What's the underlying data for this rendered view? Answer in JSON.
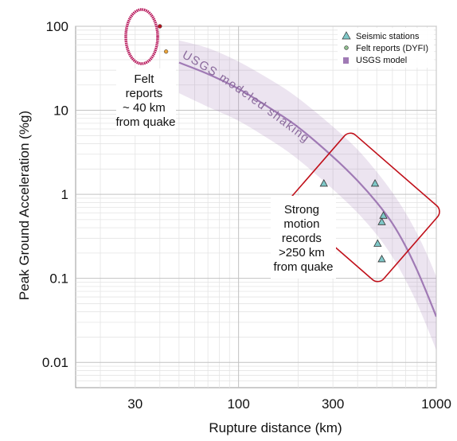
{
  "chart_data": {
    "type": "scatter",
    "title": "",
    "xlabel": "Rupture distance (km)",
    "ylabel": "Peak Ground Acceleration (%g)",
    "xscale": "log",
    "yscale": "log",
    "xlim": [
      15,
      1000
    ],
    "ylim": [
      0.005,
      100
    ],
    "x_ticks": [
      30,
      100,
      300,
      1000
    ],
    "x_tick_labels": [
      "30",
      "100",
      "300",
      "1000"
    ],
    "y_ticks": [
      0.01,
      0.1,
      1,
      10,
      100
    ],
    "y_tick_labels": [
      "0.01",
      "0.1",
      "1",
      "10",
      "100"
    ],
    "grid": true,
    "legend": {
      "position": "top-right",
      "entries": [
        {
          "label": "Seismic stations",
          "marker": "triangle",
          "color": "#7fc8c8"
        },
        {
          "label": "Felt reports (DYFI)",
          "marker": "circle",
          "color": "#8fbf8f"
        },
        {
          "label": "USGS model",
          "marker": "square",
          "color": "#a07ab5"
        }
      ]
    },
    "series": [
      {
        "name": "Seismic stations",
        "marker": "triangle",
        "color": "#7fc8c8",
        "points": [
          {
            "x": 270,
            "y": 1.35
          },
          {
            "x": 490,
            "y": 1.35
          },
          {
            "x": 540,
            "y": 0.56
          },
          {
            "x": 530,
            "y": 0.47
          },
          {
            "x": 505,
            "y": 0.26
          },
          {
            "x": 530,
            "y": 0.17
          }
        ]
      },
      {
        "name": "Felt reports (DYFI)",
        "marker": "circle",
        "points": [
          {
            "x": 40,
            "y": 100,
            "color": "#b5121b"
          },
          {
            "x": 43,
            "y": 50,
            "color": "#e8a23a"
          }
        ]
      },
      {
        "name": "USGS model",
        "color": "#a07ab5",
        "median": [
          {
            "x": 50,
            "y": 37
          },
          {
            "x": 70,
            "y": 27
          },
          {
            "x": 100,
            "y": 18
          },
          {
            "x": 150,
            "y": 10
          },
          {
            "x": 200,
            "y": 6.3
          },
          {
            "x": 300,
            "y": 2.8
          },
          {
            "x": 400,
            "y": 1.45
          },
          {
            "x": 500,
            "y": 0.8
          },
          {
            "x": 600,
            "y": 0.45
          },
          {
            "x": 700,
            "y": 0.24
          },
          {
            "x": 800,
            "y": 0.125
          },
          {
            "x": 900,
            "y": 0.065
          },
          {
            "x": 1000,
            "y": 0.035
          }
        ],
        "band_upper": [
          {
            "x": 50,
            "y": 68
          },
          {
            "x": 70,
            "y": 55
          },
          {
            "x": 100,
            "y": 38
          },
          {
            "x": 150,
            "y": 22
          },
          {
            "x": 200,
            "y": 14
          },
          {
            "x": 300,
            "y": 6.4
          },
          {
            "x": 400,
            "y": 3.4
          },
          {
            "x": 500,
            "y": 1.85
          },
          {
            "x": 600,
            "y": 1.05
          },
          {
            "x": 700,
            "y": 0.6
          },
          {
            "x": 800,
            "y": 0.34
          },
          {
            "x": 900,
            "y": 0.19
          },
          {
            "x": 1000,
            "y": 0.105
          }
        ],
        "band_lower": [
          {
            "x": 50,
            "y": 16
          },
          {
            "x": 70,
            "y": 11
          },
          {
            "x": 100,
            "y": 7.5
          },
          {
            "x": 150,
            "y": 4.2
          },
          {
            "x": 200,
            "y": 2.6
          },
          {
            "x": 300,
            "y": 1.15
          },
          {
            "x": 400,
            "y": 0.6
          },
          {
            "x": 500,
            "y": 0.33
          },
          {
            "x": 600,
            "y": 0.18
          },
          {
            "x": 700,
            "y": 0.095
          },
          {
            "x": 800,
            "y": 0.05
          },
          {
            "x": 900,
            "y": 0.026
          },
          {
            "x": 1000,
            "y": 0.014
          }
        ]
      }
    ],
    "annotations": {
      "curve_label": "USGS modeled shaking",
      "felt_reports_note": [
        "Felt",
        "reports",
        "~ 40 km",
        "from quake"
      ],
      "strong_motion_note": [
        "Strong",
        "motion",
        "records",
        ">250 km",
        "from quake"
      ],
      "highlight_color": "#c0101a"
    }
  }
}
